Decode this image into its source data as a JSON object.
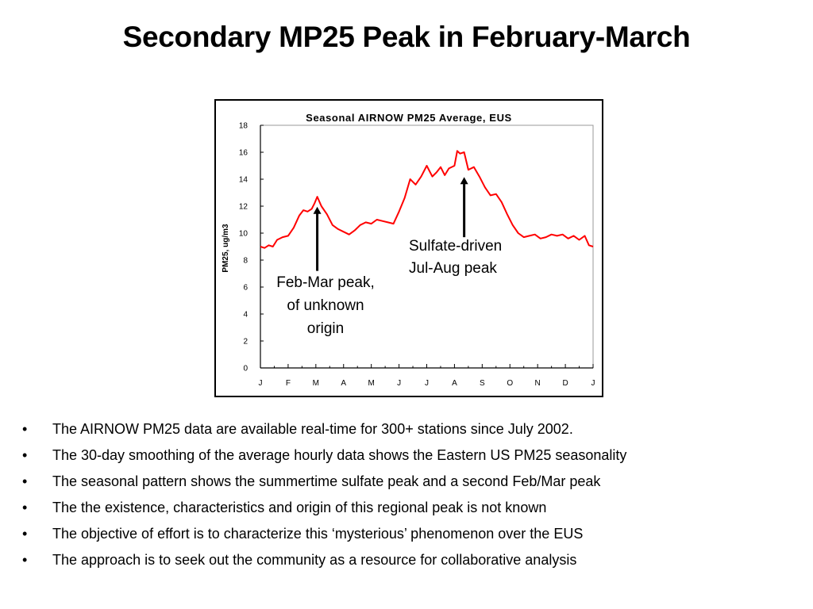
{
  "slide": {
    "title": "Secondary MP25 Peak in February-March"
  },
  "bullets": [
    "The AIRNOW PM25 data are available real-time for 300+ stations since July 2002.",
    "The 30-day smoothing of the average hourly data shows the Eastern US PM25 seasonality",
    "The seasonal pattern shows the summertime sulfate peak and a second Feb/Mar peak",
    "The the existence, characteristics and origin of this regional peak is not known",
    "The objective of effort is to characterize this ‘mysterious’ phenomenon over the EUS",
    "The approach is to seek out the community as a resource for collaborative analysis"
  ],
  "bullet_char": "•",
  "chart_data": {
    "type": "line",
    "title": "Seasonal AIRNOW PM25 Average, EUS",
    "xlabel": "",
    "ylabel": "PM25, ug/m3",
    "ylim": [
      0,
      18
    ],
    "yticks": [
      "0",
      "2",
      "4",
      "6",
      "8",
      "10",
      "12",
      "14",
      "16",
      "18"
    ],
    "xticks": [
      "J",
      "F",
      "M",
      "A",
      "M",
      "J",
      "J",
      "A",
      "S",
      "O",
      "N",
      "D",
      "J"
    ],
    "xlim": [
      0,
      12
    ],
    "line_color": "#ff0000",
    "grid": false,
    "series": [
      {
        "x": [
          0.0,
          0.15,
          0.3,
          0.45,
          0.6,
          0.8,
          1.0,
          1.2,
          1.4,
          1.55,
          1.7,
          1.85,
          1.95,
          2.05,
          2.2,
          2.4,
          2.6,
          2.8,
          3.0,
          3.2,
          3.4,
          3.6,
          3.8,
          4.0,
          4.2,
          4.4,
          4.6,
          4.8,
          5.0,
          5.2,
          5.4,
          5.6,
          5.8,
          6.0,
          6.2,
          6.35,
          6.5,
          6.65,
          6.8,
          7.0,
          7.1,
          7.2,
          7.35,
          7.5,
          7.7,
          7.9,
          8.1,
          8.3,
          8.5,
          8.7,
          8.9,
          9.1,
          9.3,
          9.5,
          9.7,
          9.9,
          10.1,
          10.3,
          10.5,
          10.7,
          10.9,
          11.1,
          11.3,
          11.5,
          11.7,
          11.85,
          12.0
        ],
        "values": [
          9.0,
          8.9,
          9.1,
          9.0,
          9.5,
          9.7,
          9.8,
          10.4,
          11.3,
          11.7,
          11.6,
          11.8,
          12.2,
          12.7,
          12.0,
          11.4,
          10.6,
          10.3,
          10.1,
          9.9,
          10.2,
          10.6,
          10.8,
          10.7,
          11.0,
          10.9,
          10.8,
          10.7,
          11.6,
          12.6,
          14.0,
          13.6,
          14.2,
          15.0,
          14.2,
          14.5,
          14.9,
          14.3,
          14.8,
          15.0,
          16.1,
          15.9,
          16.0,
          14.7,
          14.9,
          14.2,
          13.4,
          12.8,
          12.9,
          12.3,
          11.4,
          10.6,
          10.0,
          9.7,
          9.8,
          9.9,
          9.6,
          9.7,
          9.9,
          9.8,
          9.9,
          9.6,
          9.8,
          9.5,
          9.8,
          9.1,
          9.0
        ]
      }
    ],
    "annotations": [
      {
        "lines": [
          "Feb-Mar peak,",
          "of unknown",
          "origin"
        ],
        "arrow_x": 2.05,
        "arrow_from": 7.2,
        "arrow_to": 11.9
      },
      {
        "lines": [
          "Sulfate-driven",
          "Jul-Aug peak"
        ],
        "arrow_x": 7.35,
        "arrow_from": 9.7,
        "arrow_to": 14.1
      }
    ]
  }
}
